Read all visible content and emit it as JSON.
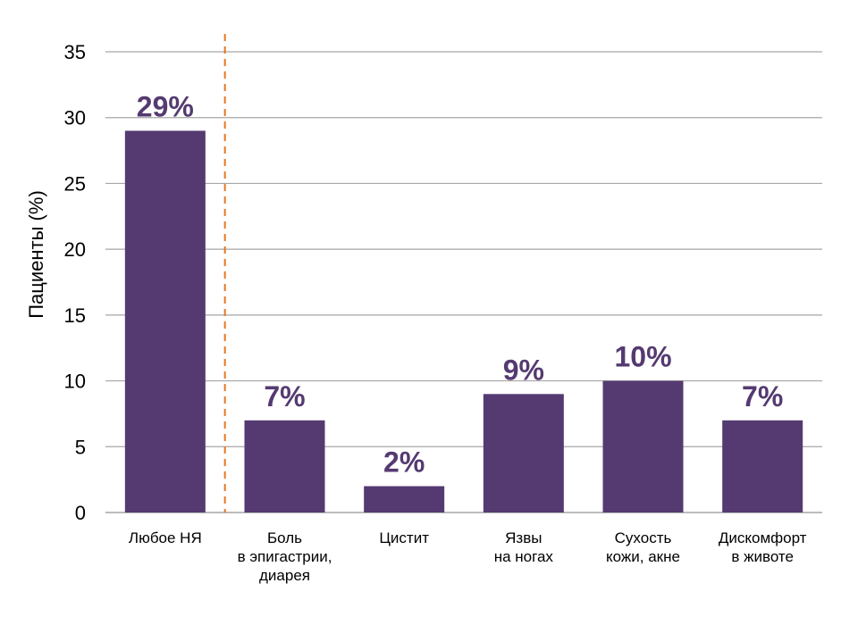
{
  "chart_data": {
    "type": "bar",
    "categories": [
      [
        "Любое НЯ"
      ],
      [
        "Боль",
        "в эпигастрии,",
        "диарея"
      ],
      [
        "Цистит"
      ],
      [
        "Язвы",
        "на ногах"
      ],
      [
        "Сухость",
        "кожи, акне"
      ],
      [
        "Дискомфорт",
        "в животе"
      ]
    ],
    "values": [
      29,
      7,
      2,
      9,
      10,
      7
    ],
    "data_labels": [
      "29%",
      "7%",
      "2%",
      "9%",
      "10%",
      "7%"
    ],
    "ylabel": "Пациенты (%)",
    "ylim": [
      0,
      35
    ],
    "yticks": [
      0,
      5,
      10,
      15,
      20,
      25,
      30,
      35
    ],
    "grid": true,
    "separator_after_category": 0,
    "colors": {
      "bar": "#553A71",
      "label": "#553A71",
      "grid": "#A6A6A6",
      "separator": "#E87722"
    }
  }
}
